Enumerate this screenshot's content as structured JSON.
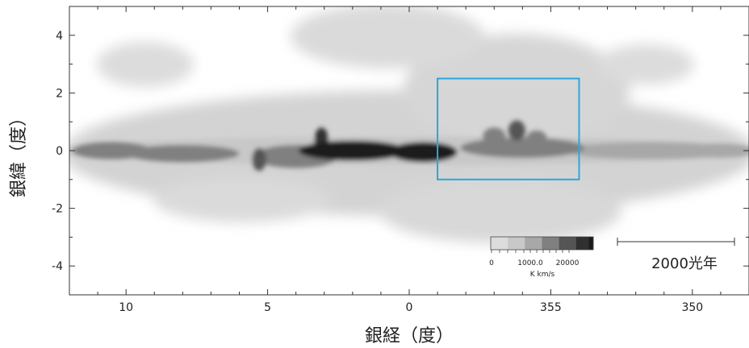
{
  "chart_data": {
    "type": "heatmap",
    "xlabel": "銀経（度）",
    "ylabel": "銀緯（度）",
    "xlim": [
      12.0,
      348.0
    ],
    "ylim": [
      -5,
      5
    ],
    "x_ticks": [
      {
        "value": 10,
        "label": "10"
      },
      {
        "value": 5,
        "label": "5"
      },
      {
        "value": 0,
        "label": "0"
      },
      {
        "value": 355,
        "label": "355"
      },
      {
        "value": 350,
        "label": "350"
      }
    ],
    "y_ticks": [
      {
        "value": 4,
        "label": "4"
      },
      {
        "value": 2,
        "label": "2"
      },
      {
        "value": 0,
        "label": "0"
      },
      {
        "value": -2,
        "label": "-2"
      },
      {
        "value": -4,
        "label": "-4"
      }
    ],
    "colorbar": {
      "tick_labels": [
        "0",
        "1000.0",
        "20000"
      ],
      "unit": "K km/s",
      "colors": [
        "#dcdcdc",
        "#c8c8c8",
        "#a8a8a8",
        "#808080",
        "#555555",
        "#303030",
        "#1a1a1a"
      ]
    },
    "highlight_box": {
      "l_from": -1.0,
      "l_to": -6.0,
      "b_from": -1.0,
      "b_to": 2.5,
      "color": "#2aa7dc"
    },
    "scale_bar": {
      "label": "2000光年"
    },
    "emission_blobs": [
      {
        "l": 2.0,
        "b": 0.0,
        "dl": 1.9,
        "db": 0.35,
        "level": 6
      },
      {
        "l": -0.5,
        "b": -0.05,
        "dl": 1.2,
        "db": 0.35,
        "level": 6
      },
      {
        "l": 3.1,
        "b": 0.35,
        "dl": 0.25,
        "db": 0.45,
        "level": 5
      },
      {
        "l": 5.3,
        "b": -0.3,
        "dl": 0.25,
        "db": 0.4,
        "level": 4
      },
      {
        "l": -3.8,
        "b": 0.7,
        "dl": 0.3,
        "db": 0.35,
        "level": 4
      },
      {
        "l": -4.5,
        "b": 0.45,
        "dl": 0.35,
        "db": 0.25,
        "level": 3
      },
      {
        "l": -3.0,
        "b": 0.5,
        "dl": 0.4,
        "db": 0.3,
        "level": 3
      },
      {
        "l": 8.0,
        "b": -0.1,
        "dl": 2.0,
        "db": 0.3,
        "level": 3
      },
      {
        "l": 4.0,
        "b": -0.2,
        "dl": 1.5,
        "db": 0.4,
        "level": 3
      },
      {
        "l": -4.0,
        "b": 0.1,
        "dl": 2.2,
        "db": 0.35,
        "level": 3
      },
      {
        "l": 10.5,
        "b": 0.0,
        "dl": 1.4,
        "db": 0.3,
        "level": 3
      },
      {
        "l": -8.5,
        "b": 0.0,
        "dl": 3.0,
        "db": 0.3,
        "level": 2
      },
      {
        "l": -11.0,
        "b": 0.0,
        "dl": 1.2,
        "db": 0.25,
        "level": 2
      },
      {
        "l": 0.0,
        "b": 0.0,
        "dl": 12.5,
        "db": 0.5,
        "level": 1
      }
    ]
  }
}
